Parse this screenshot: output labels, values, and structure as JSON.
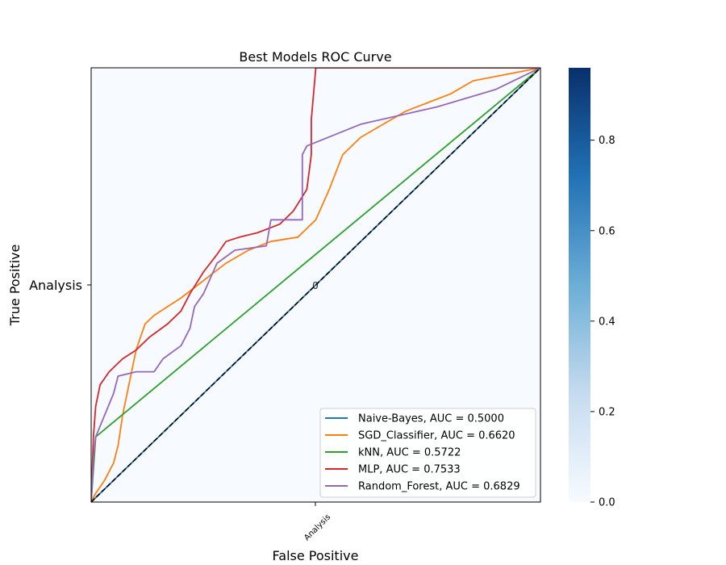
{
  "chart_data": {
    "type": "line",
    "title": "Best Models ROC Curve",
    "xlabel": "False Positive",
    "ylabel": "True Positive",
    "xlim": [
      0,
      1
    ],
    "ylim": [
      0,
      1
    ],
    "x_tick_label": "Analysis",
    "y_tick_label": "Analysis",
    "cell_annotation": "0",
    "legend_position": "lower-right",
    "colorbar": {
      "min": 0,
      "max": 0.96,
      "ticks": [
        {
          "value": 0.0,
          "label": "0.0"
        },
        {
          "value": 0.2,
          "label": "0.2"
        },
        {
          "value": 0.4,
          "label": "0.4"
        },
        {
          "value": 0.6,
          "label": "0.6"
        },
        {
          "value": 0.8,
          "label": "0.8"
        }
      ],
      "colors": [
        "#f7fbff",
        "#c6dbef",
        "#6baed6",
        "#2171b5",
        "#08306b"
      ]
    },
    "series": [
      {
        "name": "Naive-Bayes, AUC = 0.5000",
        "color": "#1f77b4",
        "points": [
          [
            0,
            0
          ],
          [
            1,
            1
          ]
        ]
      },
      {
        "name": "SGD_Classifier, AUC = 0.6620",
        "color": "#ff7f0e",
        "points": [
          [
            0,
            0
          ],
          [
            0.01,
            0.02
          ],
          [
            0.03,
            0.05
          ],
          [
            0.05,
            0.09
          ],
          [
            0.06,
            0.13
          ],
          [
            0.07,
            0.2
          ],
          [
            0.1,
            0.35
          ],
          [
            0.12,
            0.41
          ],
          [
            0.14,
            0.43
          ],
          [
            0.17,
            0.45
          ],
          [
            0.2,
            0.47
          ],
          [
            0.25,
            0.51
          ],
          [
            0.3,
            0.55
          ],
          [
            0.35,
            0.58
          ],
          [
            0.4,
            0.6
          ],
          [
            0.46,
            0.61
          ],
          [
            0.5,
            0.65
          ],
          [
            0.53,
            0.72
          ],
          [
            0.56,
            0.8
          ],
          [
            0.6,
            0.84
          ],
          [
            0.65,
            0.87
          ],
          [
            0.7,
            0.9
          ],
          [
            0.75,
            0.92
          ],
          [
            0.8,
            0.94
          ],
          [
            0.85,
            0.97
          ],
          [
            0.9,
            0.98
          ],
          [
            0.95,
            0.99
          ],
          [
            1,
            1
          ]
        ]
      },
      {
        "name": "kNN, AUC = 0.5722",
        "color": "#2ca02c",
        "points": [
          [
            0,
            0
          ],
          [
            0.01,
            0.15
          ],
          [
            1,
            1
          ]
        ]
      },
      {
        "name": "MLP, AUC = 0.7533",
        "color": "#d62728",
        "points": [
          [
            0,
            0
          ],
          [
            0.005,
            0.15
          ],
          [
            0.01,
            0.22
          ],
          [
            0.02,
            0.27
          ],
          [
            0.04,
            0.3
          ],
          [
            0.07,
            0.33
          ],
          [
            0.1,
            0.35
          ],
          [
            0.13,
            0.38
          ],
          [
            0.17,
            0.41
          ],
          [
            0.2,
            0.44
          ],
          [
            0.22,
            0.48
          ],
          [
            0.25,
            0.53
          ],
          [
            0.28,
            0.57
          ],
          [
            0.3,
            0.6
          ],
          [
            0.33,
            0.61
          ],
          [
            0.37,
            0.62
          ],
          [
            0.42,
            0.64
          ],
          [
            0.45,
            0.67
          ],
          [
            0.48,
            0.72
          ],
          [
            0.49,
            0.8
          ],
          [
            0.49,
            0.88
          ],
          [
            0.5,
            1
          ],
          [
            1,
            1
          ]
        ]
      },
      {
        "name": "Random_Forest, AUC = 0.6829",
        "color": "#9467bd",
        "points": [
          [
            0,
            0
          ],
          [
            0.005,
            0.1
          ],
          [
            0.01,
            0.15
          ],
          [
            0.03,
            0.2
          ],
          [
            0.05,
            0.25
          ],
          [
            0.06,
            0.29
          ],
          [
            0.1,
            0.3
          ],
          [
            0.14,
            0.3
          ],
          [
            0.16,
            0.33
          ],
          [
            0.2,
            0.36
          ],
          [
            0.22,
            0.4
          ],
          [
            0.23,
            0.45
          ],
          [
            0.25,
            0.48
          ],
          [
            0.28,
            0.55
          ],
          [
            0.32,
            0.58
          ],
          [
            0.39,
            0.59
          ],
          [
            0.4,
            0.65
          ],
          [
            0.47,
            0.65
          ],
          [
            0.47,
            0.8
          ],
          [
            0.48,
            0.82
          ],
          [
            0.6,
            0.87
          ],
          [
            0.77,
            0.91
          ],
          [
            0.9,
            0.95
          ],
          [
            1,
            1
          ]
        ]
      }
    ]
  }
}
